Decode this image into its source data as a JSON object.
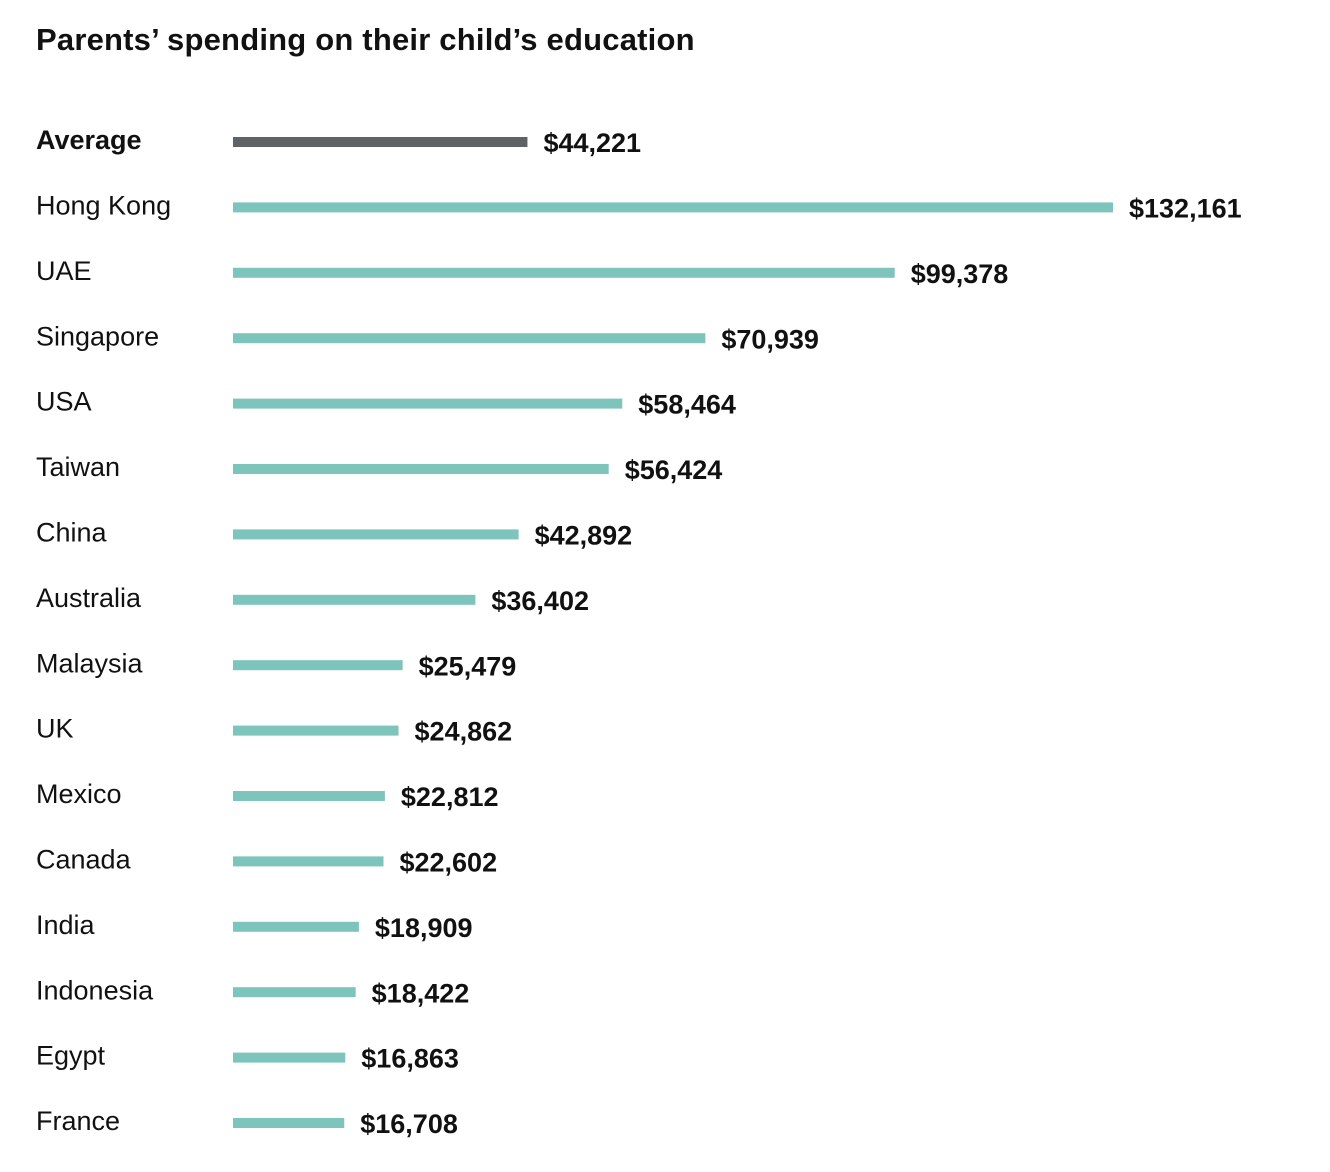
{
  "chart_data": {
    "type": "bar",
    "orientation": "horizontal",
    "title": "Parents’ spending on their child’s education",
    "xlabel": "",
    "ylabel": "",
    "grid": false,
    "legend": "none",
    "xlim": [
      0,
      132161
    ],
    "categories": [
      "Average",
      "Hong Kong",
      "UAE",
      "Singapore",
      "USA",
      "Taiwan",
      "China",
      "Australia",
      "Malaysia",
      "UK",
      "Mexico",
      "Canada",
      "India",
      "Indonesia",
      "Egypt",
      "France"
    ],
    "values": [
      44221,
      132161,
      99378,
      70939,
      58464,
      56424,
      42892,
      36402,
      25479,
      24862,
      22812,
      22602,
      18909,
      18422,
      16863,
      16708
    ],
    "value_labels": [
      "$44,221",
      "$132,161",
      "$99,378",
      "$70,939",
      "$58,464",
      "$56,424",
      "$42,892",
      "$36,402",
      "$25,479",
      "$24,862",
      "$22,812",
      "$22,602",
      "$18,909",
      "$18,422",
      "$16,863",
      "$16,708"
    ],
    "highlight_category": "Average",
    "colors": {
      "highlight": "#5f6366",
      "bar": "#7cc4bc"
    }
  }
}
